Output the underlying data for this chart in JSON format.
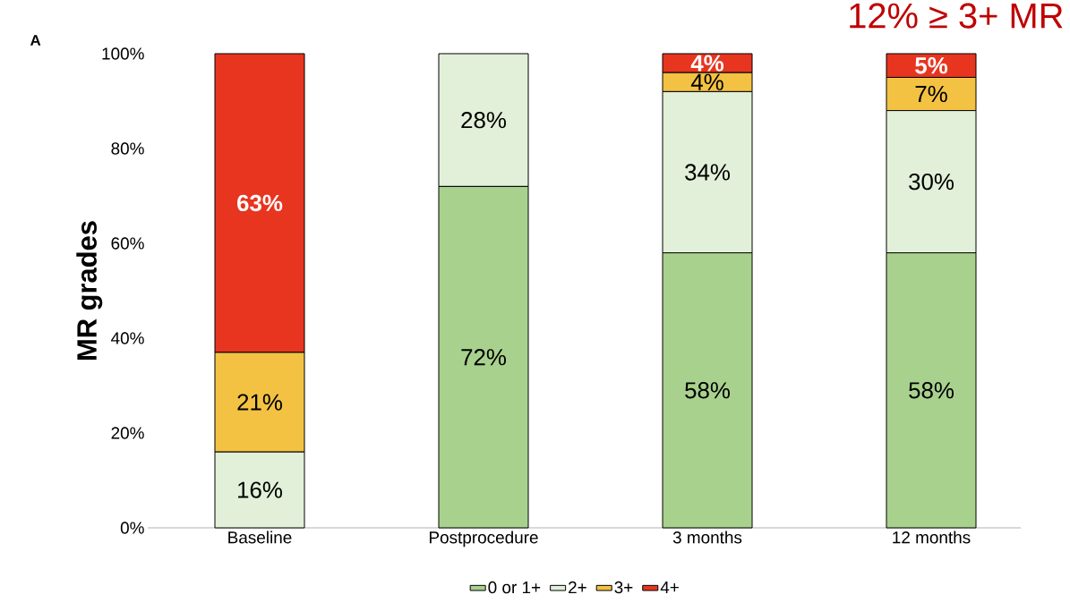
{
  "chart_data": {
    "type": "bar",
    "stacked": true,
    "ylabel": "MR grades",
    "categories": [
      "Baseline",
      "Postprocedure",
      "3 months",
      "12 months"
    ],
    "series": [
      {
        "name": "0 or 1+",
        "color": "#a9d18e",
        "values": [
          0,
          72,
          58,
          58
        ],
        "value_labels": [
          null,
          "72%",
          "58%",
          "58%"
        ]
      },
      {
        "name": "2+",
        "color": "#e2f0d9",
        "values": [
          16,
          28,
          34,
          30
        ],
        "value_labels": [
          "16%",
          "28%",
          "34%",
          "30%"
        ]
      },
      {
        "name": "3+",
        "color": "#f4c242",
        "values": [
          21,
          0,
          4,
          7
        ],
        "value_labels": [
          "21%",
          null,
          "4%",
          "7%"
        ]
      },
      {
        "name": "4+",
        "color": "#e8351f",
        "values": [
          63,
          0,
          4,
          5
        ],
        "value_labels": [
          "63%",
          null,
          "4%",
          "5%"
        ]
      }
    ],
    "ylim": [
      0,
      100
    ],
    "yticks": [
      {
        "value": 0,
        "label": "0%"
      },
      {
        "value": 20,
        "label": "20%"
      },
      {
        "value": 40,
        "label": "40%"
      },
      {
        "value": 60,
        "label": "60%"
      },
      {
        "value": 80,
        "label": "80%"
      },
      {
        "value": 100,
        "label": "100%"
      }
    ],
    "legend": "bottom",
    "grid": false,
    "annotations": [
      "A",
      "12% ≥ 3+ MR"
    ]
  }
}
